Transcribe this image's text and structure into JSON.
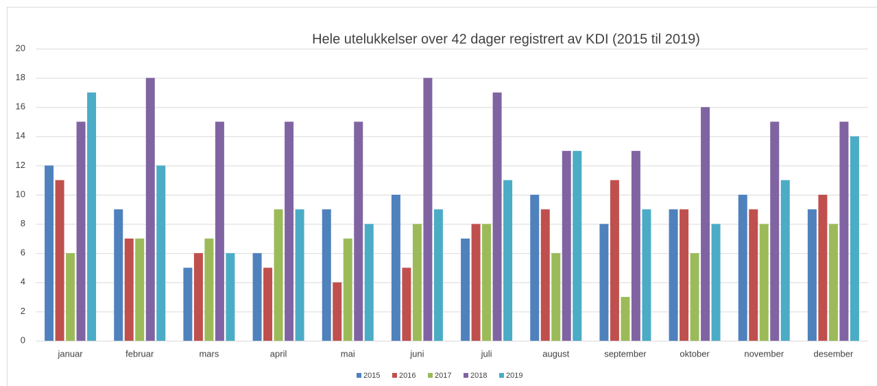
{
  "chart_data": {
    "type": "bar",
    "title": "Hele utelukkelser over 42 dager registrert av KDI (2015 til 2019)",
    "categories": [
      "januar",
      "februar",
      "mars",
      "april",
      "mai",
      "juni",
      "juli",
      "august",
      "september",
      "oktober",
      "november",
      "desember"
    ],
    "series": [
      {
        "name": "2015",
        "color": "#4f81bd",
        "values": [
          12,
          9,
          5,
          6,
          9,
          10,
          7,
          10,
          8,
          9,
          10,
          9
        ]
      },
      {
        "name": "2016",
        "color": "#c0504d",
        "values": [
          11,
          7,
          6,
          5,
          4,
          5,
          8,
          9,
          11,
          9,
          9,
          10
        ]
      },
      {
        "name": "2017",
        "color": "#9bbb59",
        "values": [
          6,
          7,
          7,
          9,
          7,
          8,
          8,
          6,
          3,
          6,
          8,
          8
        ]
      },
      {
        "name": "2018",
        "color": "#8064a2",
        "values": [
          15,
          18,
          15,
          15,
          15,
          18,
          17,
          13,
          13,
          16,
          15,
          15
        ]
      },
      {
        "name": "2019",
        "color": "#4bacc6",
        "values": [
          17,
          12,
          6,
          9,
          8,
          9,
          11,
          13,
          9,
          8,
          11,
          14
        ]
      }
    ],
    "ylim": [
      0,
      20
    ],
    "yticks": [
      0,
      2,
      4,
      6,
      8,
      10,
      12,
      14,
      16,
      18,
      20
    ],
    "grid": true,
    "legend": "bottom"
  }
}
